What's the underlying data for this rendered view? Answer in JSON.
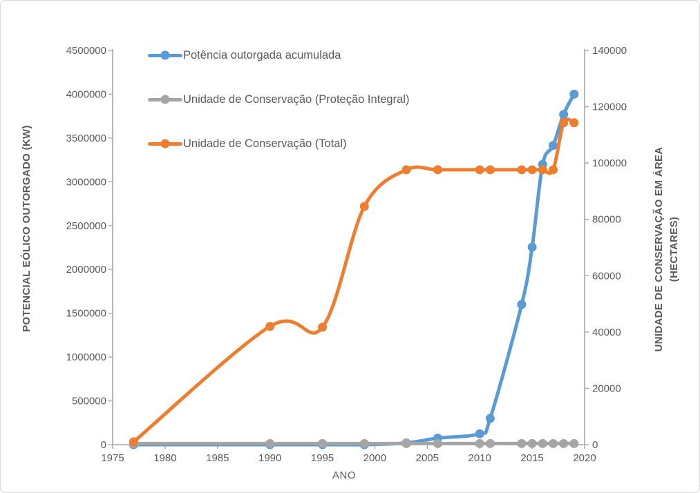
{
  "chart": {
    "background": "#FFFFFF",
    "border_color": "#D8D8D8",
    "text_color": "#595959",
    "axis_line_color": "#A6A6A6"
  },
  "chart_data": {
    "type": "line",
    "title": "",
    "xlabel": "ANO",
    "ylabel_left": "POTENCIAL EÓLICO OUTORGADO (KW)",
    "ylabel_right": [
      "UNIDADE DE CONSERVAÇÃO EM ÁREA",
      "(HECTARES)"
    ],
    "x": [
      1977,
      1990,
      1995,
      1999,
      2003,
      2006,
      2010,
      2011,
      2014,
      2015,
      2016,
      2017,
      2018,
      2019
    ],
    "x_axis": {
      "min": 1975,
      "max": 2020,
      "ticks": [
        1975,
        1980,
        1985,
        1990,
        1995,
        2000,
        2005,
        2010,
        2015,
        2020
      ]
    },
    "left_axis": {
      "min": 0,
      "max": 4500000,
      "ticks": [
        0,
        500000,
        1000000,
        1500000,
        2000000,
        2500000,
        3000000,
        3500000,
        4000000,
        4500000
      ]
    },
    "right_axis": {
      "min": 0,
      "max": 140000,
      "ticks": [
        0,
        20000,
        40000,
        60000,
        80000,
        100000,
        120000,
        140000
      ]
    },
    "legend_position": "top-left-inside",
    "smooth_lines": true,
    "grid": false,
    "series": [
      {
        "name": "Potência outorgada acumulada",
        "axis": "left",
        "color": "#5B9BD5",
        "values": [
          0,
          0,
          0,
          0,
          20000,
          75000,
          125000,
          300000,
          1600000,
          2255000,
          3200000,
          3415000,
          3770000,
          4000000
        ]
      },
      {
        "name": "Unidade de Conservação (Proteção Integral)",
        "axis": "right",
        "color": "#A5A5A5",
        "values": [
          400,
          400,
          400,
          400,
          400,
          400,
          400,
          400,
          400,
          400,
          400,
          400,
          400,
          400
        ]
      },
      {
        "name": "Unidade de Conservação (Total)",
        "axis": "right",
        "color": "#ED7D31",
        "values": [
          1000,
          42000,
          41700,
          84600,
          97600,
          97600,
          97600,
          97600,
          97600,
          97600,
          97600,
          97600,
          114300,
          114300
        ]
      }
    ]
  }
}
